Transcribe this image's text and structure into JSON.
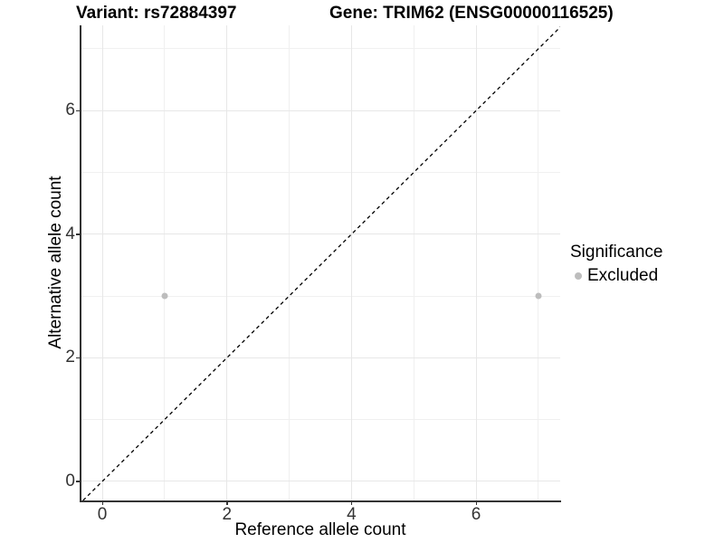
{
  "chart_data": {
    "type": "scatter",
    "title_left": "Variant: rs72884397",
    "title_right": "Gene: TRIM62 (ENSG00000116525)",
    "xlabel": "Reference allele count",
    "ylabel": "Alternative allele count",
    "xlim": [
      -0.35,
      7.35
    ],
    "ylim": [
      -0.31,
      7.38
    ],
    "x_major_ticks": [
      0,
      2,
      4,
      6
    ],
    "y_major_ticks": [
      0,
      2,
      4,
      6
    ],
    "x_minor_gridlines": [
      1,
      3,
      5,
      7
    ],
    "y_minor_gridlines": [
      1,
      3,
      5,
      7
    ],
    "grid": true,
    "points": [
      {
        "x": 1,
        "y": 3,
        "series": "Excluded"
      },
      {
        "x": 7,
        "y": 3,
        "series": "Excluded"
      }
    ],
    "reference_line": {
      "type": "identity",
      "style": "dashed",
      "x1": -0.31,
      "y1": -0.31,
      "x2": 7.38,
      "y2": 7.38,
      "color": "#000000"
    },
    "legend": {
      "title": "Significance",
      "position": "right",
      "items": [
        {
          "label": "Excluded",
          "color": "#bdbdbd"
        }
      ]
    },
    "colors": {
      "point": "#bdbdbd",
      "grid_major": "#e7e7e7",
      "grid_minor": "#f0f0f0",
      "axis_line": "#333333",
      "text": "#000000"
    }
  }
}
